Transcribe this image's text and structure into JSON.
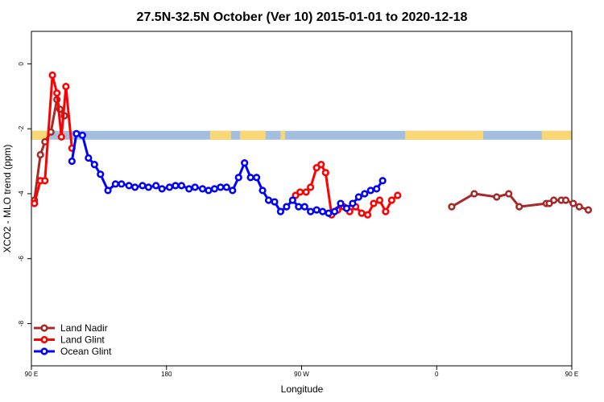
{
  "chart_data": {
    "type": "line",
    "title": "27.5N-32.5N October (Ver 10)   2015-01-01 to 2020-12-18",
    "xlabel": "Longitude",
    "ylabel": "XCO2 - MLO trend (ppm)",
    "xlim": [
      90,
      450
    ],
    "ylim": [
      -9.3,
      1.0
    ],
    "x_ticks": [
      {
        "value": 90,
        "label": "90 E"
      },
      {
        "value": 180,
        "label": "180"
      },
      {
        "value": 270,
        "label": "90 W"
      },
      {
        "value": 360,
        "label": "0"
      },
      {
        "value": 450,
        "label": "90 E"
      },
      {
        "value": 540,
        "label": "180"
      }
    ],
    "y_ticks": [
      {
        "value": 0,
        "label": "0"
      },
      {
        "value": -2,
        "label": "-2"
      },
      {
        "value": -4,
        "label": "-4"
      },
      {
        "value": -6,
        "label": "-6"
      },
      {
        "value": -8,
        "label": "-8"
      }
    ],
    "legend_position": "bottom-left",
    "surface_band": {
      "y_center": -2.2,
      "ocean_color": "#A4BEE0",
      "land_color": "#F9D775",
      "land_segments": [
        [
          90,
          102
        ],
        [
          209,
          223
        ],
        [
          229,
          246
        ],
        [
          256,
          259
        ],
        [
          339,
          391
        ],
        [
          430,
          482
        ],
        [
          510,
          513
        ],
        [
          521,
          529
        ],
        [
          537,
          540
        ]
      ]
    },
    "series": [
      {
        "name": "Land Nadir",
        "color": "#A52A2A",
        "x": [
          92,
          96,
          99,
          103,
          107,
          109,
          112,
          370,
          385,
          400,
          408,
          415,
          433,
          435,
          438,
          443,
          446,
          451,
          455,
          461
        ],
        "y": [
          -4.2,
          -2.8,
          -2.4,
          -2.1,
          -1.1,
          -1.4,
          -1.6,
          -4.4,
          -4.0,
          -4.1,
          -4.0,
          -4.4,
          -4.3,
          -4.3,
          -4.2,
          -4.2,
          -4.2,
          -4.3,
          -4.4,
          -4.5
        ]
      },
      {
        "name": "Land Glint",
        "color": "#FF0000",
        "x": [
          92,
          96,
          99,
          104,
          107,
          110,
          113,
          117,
          266,
          269,
          273,
          276,
          280,
          283,
          286,
          290,
          294,
          298,
          302,
          306,
          310,
          314,
          318,
          322,
          326,
          330,
          334
        ],
        "y": [
          -4.3,
          -3.6,
          -3.6,
          -0.35,
          -0.9,
          -2.25,
          -0.7,
          -2.6,
          -4.05,
          -3.95,
          -3.95,
          -3.8,
          -3.2,
          -3.1,
          -3.35,
          -4.65,
          -4.5,
          -4.4,
          -4.55,
          -4.4,
          -4.6,
          -4.65,
          -4.3,
          -4.2,
          -4.55,
          -4.2,
          -4.05
        ]
      },
      {
        "name": "Ocean Glint",
        "color": "#0000FF",
        "x": [
          117,
          120,
          124,
          128,
          132,
          136,
          141,
          146,
          150,
          155,
          159,
          164,
          168,
          173,
          177,
          182,
          186,
          190,
          195,
          199,
          204,
          208,
          212,
          216,
          220,
          224,
          228,
          232,
          236,
          240,
          244,
          248,
          252,
          256,
          260,
          264,
          268,
          272,
          276,
          280,
          284,
          288,
          292,
          296,
          300,
          304,
          308,
          312,
          316,
          320,
          324
        ],
        "y": [
          -3.0,
          -2.15,
          -2.2,
          -2.9,
          -3.1,
          -3.4,
          -3.9,
          -3.7,
          -3.7,
          -3.75,
          -3.8,
          -3.75,
          -3.8,
          -3.75,
          -3.85,
          -3.8,
          -3.75,
          -3.75,
          -3.85,
          -3.8,
          -3.85,
          -3.9,
          -3.85,
          -3.8,
          -3.8,
          -3.9,
          -3.5,
          -3.05,
          -3.5,
          -3.5,
          -3.9,
          -4.2,
          -4.25,
          -4.55,
          -4.4,
          -4.2,
          -4.4,
          -4.4,
          -4.55,
          -4.5,
          -4.55,
          -4.6,
          -4.55,
          -4.3,
          -4.45,
          -4.3,
          -4.1,
          -4.0,
          -3.9,
          -3.85,
          -3.6
        ]
      }
    ]
  }
}
